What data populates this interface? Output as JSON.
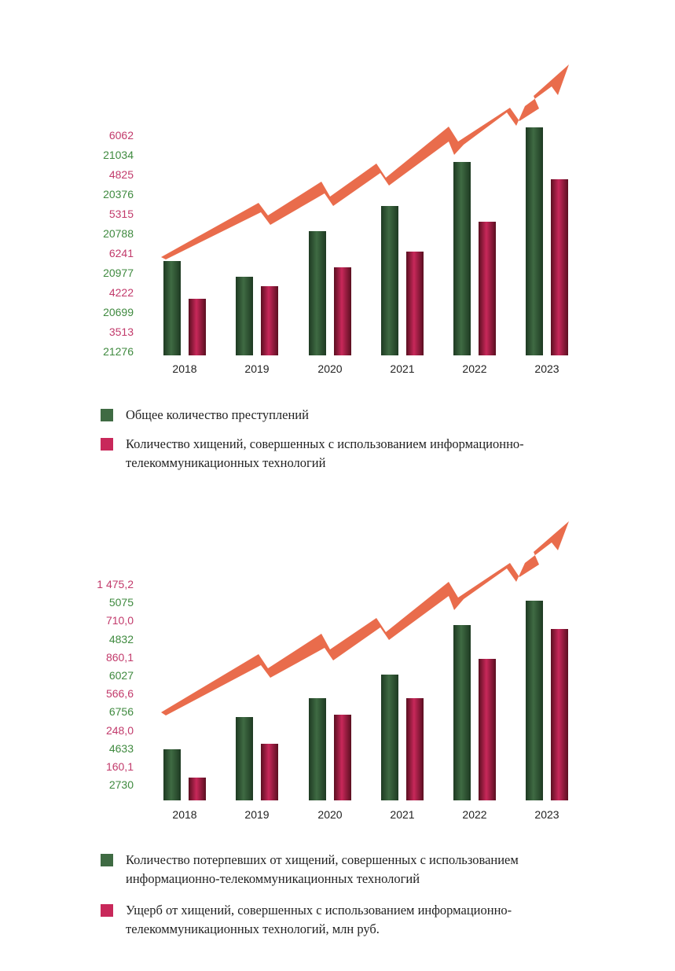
{
  "colors": {
    "green": "#3f6b43",
    "green_dark": "#1e3a22",
    "pink": "#c8285a",
    "pink_dark": "#5a0f20",
    "arrow": "#e96c4c",
    "ylabel_pink": "#c23a6b",
    "ylabel_green": "#3f8a3f"
  },
  "chart_data": [
    {
      "type": "bar",
      "categories": [
        "2018",
        "2019",
        "2020",
        "2021",
        "2022",
        "2023"
      ],
      "ylabels": [
        "6062",
        "21034",
        "4825",
        "20376",
        "5315",
        "20788",
        "6241",
        "20977",
        "4222",
        "20699",
        "3513",
        "21276"
      ],
      "ylabel_colors": [
        "pink",
        "green",
        "pink",
        "green",
        "pink",
        "green",
        "pink",
        "green",
        "pink",
        "green",
        "pink",
        "green"
      ],
      "series": [
        {
          "values": [
            21276,
            20699,
            20977,
            20788,
            20376,
            21034
          ]
        },
        {
          "values": [
            3513,
            4222,
            6241,
            5315,
            4825,
            6062
          ]
        }
      ],
      "legend": [
        "Общее количество преступлений",
        "Количество хищений, совершенных с использованием информационно-телекоммуникационных технологий"
      ]
    },
    {
      "type": "bar",
      "categories": [
        "2018",
        "2019",
        "2020",
        "2021",
        "2022",
        "2023"
      ],
      "ylabels": [
        "1 475,2",
        "5075",
        "710,0",
        "4832",
        "860,1",
        "6027",
        "566,6",
        "6756",
        "248,0",
        "4633",
        "160,1",
        "2730"
      ],
      "ylabel_colors": [
        "pink",
        "green",
        "pink",
        "green",
        "pink",
        "green",
        "pink",
        "green",
        "pink",
        "green",
        "pink",
        "green"
      ],
      "series": [
        {
          "values": [
            2730,
            4633,
            6756,
            6027,
            4832,
            5075
          ]
        },
        {
          "values": [
            160.1,
            248.0,
            566.6,
            860.1,
            710.0,
            1475.2
          ]
        }
      ],
      "legend": [
        "Количество потерпевших от хищений, совершенных с использованием информационно-телекоммуникационных технологий",
        "Ущерб от хищений, совершенных с использованием информационно-телекоммуникационных технологий, млн руб."
      ]
    }
  ]
}
